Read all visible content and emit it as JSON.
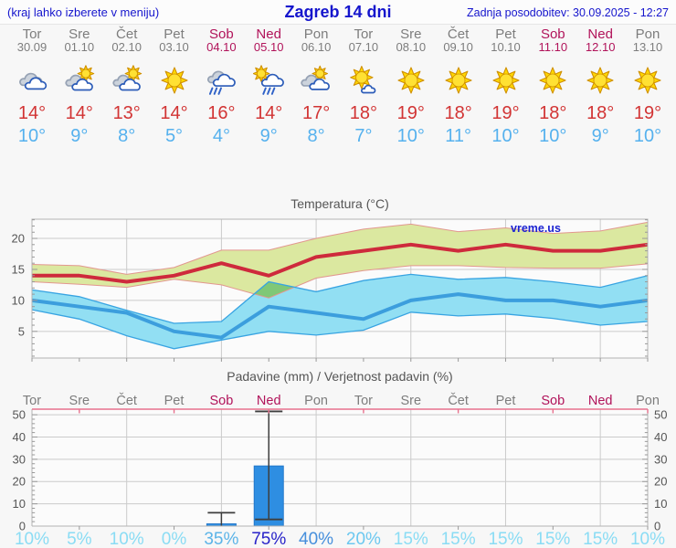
{
  "header": {
    "left_note": "(kraj lahko izberete v meniju)",
    "title": "Zagreb 14 dni",
    "updated": "Zadnja posodobitev: 30.09.2025 - 12:27"
  },
  "colors": {
    "header_blue": "#1515cd",
    "weekday_gray": "#7d7d7d",
    "weekend_red": "#b1135a",
    "tmax_red": "#d23434",
    "tmin_blue": "#55b1ee",
    "max_line": "#ce2a3c",
    "max_band_fill": "#dbe8a0",
    "max_band_edge": "#e2978f",
    "min_line": "#3c9edd",
    "min_band_fill": "#92dff3",
    "min_band_edge": "#38a4e2",
    "band_overlap_green": "#7fc877",
    "bar_blue": "#2e8ee2",
    "whisker_dark": "#3e3e3e",
    "grid": "#cbcbcb",
    "plot_border": "#b3b3b3",
    "precip_top_border_pink": "#e8718d"
  },
  "forecast": {
    "days": [
      {
        "name": "Tor",
        "date": "30.09",
        "weekend": false,
        "icon": "cloudy",
        "tmax": "14°",
        "tmin": "10°",
        "precip_prob": "10%"
      },
      {
        "name": "Sre",
        "date": "01.10",
        "weekend": false,
        "icon": "sun-cloud",
        "tmax": "14°",
        "tmin": "9°",
        "precip_prob": "5%"
      },
      {
        "name": "Čet",
        "date": "02.10",
        "weekend": false,
        "icon": "sun-cloud",
        "tmax": "13°",
        "tmin": "8°",
        "precip_prob": "10%"
      },
      {
        "name": "Pet",
        "date": "03.10",
        "weekend": false,
        "icon": "sunny",
        "tmax": "14°",
        "tmin": "5°",
        "precip_prob": "0%"
      },
      {
        "name": "Sob",
        "date": "04.10",
        "weekend": true,
        "icon": "rain",
        "tmax": "16°",
        "tmin": "4°",
        "precip_prob": "35%"
      },
      {
        "name": "Ned",
        "date": "05.10",
        "weekend": true,
        "icon": "sun-rain",
        "tmax": "14°",
        "tmin": "9°",
        "precip_prob": "75%"
      },
      {
        "name": "Pon",
        "date": "06.10",
        "weekend": false,
        "icon": "sun-clouds",
        "tmax": "17°",
        "tmin": "8°",
        "precip_prob": "40%"
      },
      {
        "name": "Tor",
        "date": "07.10",
        "weekend": false,
        "icon": "mostly-sunny",
        "tmax": "18°",
        "tmin": "7°",
        "precip_prob": "20%"
      },
      {
        "name": "Sre",
        "date": "08.10",
        "weekend": false,
        "icon": "sunny",
        "tmax": "19°",
        "tmin": "10°",
        "precip_prob": "15%"
      },
      {
        "name": "Čet",
        "date": "09.10",
        "weekend": false,
        "icon": "sunny",
        "tmax": "18°",
        "tmin": "11°",
        "precip_prob": "15%"
      },
      {
        "name": "Pet",
        "date": "10.10",
        "weekend": false,
        "icon": "sunny",
        "tmax": "19°",
        "tmin": "10°",
        "precip_prob": "15%"
      },
      {
        "name": "Sob",
        "date": "11.10",
        "weekend": true,
        "icon": "sunny",
        "tmax": "18°",
        "tmin": "10°",
        "precip_prob": "15%"
      },
      {
        "name": "Ned",
        "date": "12.10",
        "weekend": true,
        "icon": "sunny",
        "tmax": "18°",
        "tmin": "9°",
        "precip_prob": "15%"
      },
      {
        "name": "Pon",
        "date": "13.10",
        "weekend": false,
        "icon": "sunny",
        "tmax": "19°",
        "tmin": "10°",
        "precip_prob": "10%"
      }
    ]
  },
  "chart_data": [
    {
      "type": "line",
      "title": "Temperatura (°C)",
      "watermark": "vreme.us",
      "x_labels": [
        "Tor",
        "Sre",
        "Čet",
        "Pet",
        "Sob",
        "Ned",
        "Pon",
        "Tor",
        "Sre",
        "Čet",
        "Pet",
        "Sob",
        "Ned",
        "Pon"
      ],
      "dates": [
        "30.09",
        "01.10",
        "02.10",
        "03.10",
        "04.10",
        "05.10",
        "06.10",
        "07.10",
        "08.10",
        "09.10",
        "10.10",
        "11.10",
        "12.10",
        "13.10"
      ],
      "ylim": [
        0.7,
        23.1
      ],
      "yticks": [
        5,
        10,
        15,
        20
      ],
      "ytick_labels": [
        "5",
        "10",
        "15",
        "20"
      ],
      "grid": true,
      "vgrid_day_indexes": [
        2,
        4,
        6,
        8,
        10,
        12
      ],
      "series": [
        {
          "name": "max",
          "label": "max temperature",
          "values": [
            14,
            14,
            13,
            14,
            16,
            14,
            17,
            18,
            19,
            18,
            19,
            18,
            18,
            19
          ]
        },
        {
          "name": "min",
          "label": "min temperature",
          "values": [
            10,
            9,
            8,
            5,
            4,
            9,
            8,
            7,
            10,
            11,
            10,
            10,
            9,
            10
          ]
        },
        {
          "name": "max_band_upper",
          "values": [
            15.8,
            15.6,
            14.2,
            15.3,
            18.1,
            18.1,
            20.0,
            21.5,
            22.3,
            21.1,
            21.7,
            20.8,
            21.2,
            22.6
          ]
        },
        {
          "name": "max_band_lower",
          "values": [
            13.0,
            12.6,
            12.1,
            13.4,
            12.5,
            10.4,
            13.6,
            14.8,
            15.6,
            15.6,
            15.3,
            15.2,
            15.2,
            15.9
          ]
        },
        {
          "name": "min_band_upper",
          "values": [
            11.7,
            10.6,
            8.4,
            6.3,
            6.6,
            13.0,
            11.4,
            13.2,
            14.2,
            13.4,
            13.7,
            13.0,
            12.1,
            14.0
          ]
        },
        {
          "name": "min_band_lower",
          "values": [
            8.5,
            7.0,
            4.3,
            2.2,
            3.6,
            5.0,
            4.4,
            5.2,
            8.1,
            7.5,
            7.8,
            7.1,
            6.0,
            6.6
          ]
        }
      ],
      "band_overlap_polygon_day_temp": [
        [
          5.69,
          11.0
        ],
        [
          6,
          13.0
        ],
        [
          6.54,
          12.1
        ],
        [
          6,
          10.4
        ]
      ]
    },
    {
      "type": "bar",
      "title": "Padavine (mm) / Verjetnost padavin (%)",
      "categories": [
        "Tor",
        "Sre",
        "Čet",
        "Pet",
        "Sob",
        "Ned",
        "Pon",
        "Tor",
        "Sre",
        "Čet",
        "Pet",
        "Sob",
        "Ned",
        "Pon"
      ],
      "values": [
        0,
        0,
        0,
        0,
        1,
        27,
        0,
        0,
        0,
        0,
        0,
        0,
        0,
        0
      ],
      "whiskers": [
        null,
        null,
        null,
        null,
        {
          "low": 0,
          "high": 6,
          "cap_low": false,
          "cap_high": true
        },
        {
          "low": 3,
          "high": 51.5,
          "cap_low": true,
          "cap_high": true
        },
        null,
        null,
        null,
        null,
        null,
        null,
        null,
        null
      ],
      "probabilities": [
        10,
        5,
        10,
        0,
        35,
        75,
        40,
        20,
        15,
        15,
        15,
        15,
        15,
        10
      ],
      "prob_colors": [
        "#8adcf4",
        "#8adcf4",
        "#8adcf4",
        "#8adcf4",
        "#5cb4e8",
        "#2823c9",
        "#468fdc",
        "#6cc8f0",
        "#8adcf4",
        "#8adcf4",
        "#8adcf4",
        "#8adcf4",
        "#8adcf4",
        "#8adcf4"
      ],
      "ylim": [
        0,
        52.5
      ],
      "yticks": [
        0,
        10,
        20,
        30,
        40,
        50
      ],
      "ytick_labels": [
        "0",
        "10",
        "20",
        "30",
        "40",
        "50"
      ],
      "grid": true,
      "vgrid_day_indexes": [
        2,
        4,
        6,
        8,
        10,
        12
      ],
      "top_tick_day_indexes": [
        1,
        3,
        5,
        7,
        9,
        11,
        13
      ]
    }
  ]
}
